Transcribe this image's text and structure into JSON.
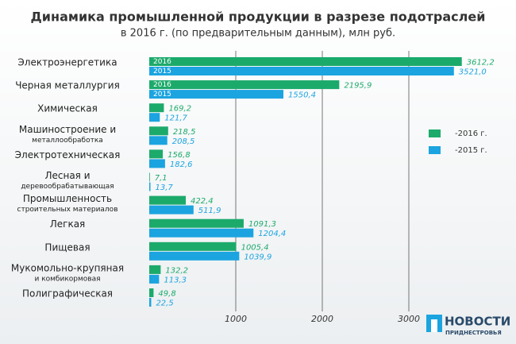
{
  "chart_data": {
    "type": "barh",
    "title": "Динамика промышленной продукции в разрезе подотраслей",
    "subtitle": "в 2016 г. (по предварительным данным), млн руб.",
    "categories": [
      [
        "Электроэнергетика"
      ],
      [
        "Черная металлургия"
      ],
      [
        "Химическая"
      ],
      [
        "Машиностроение и",
        "металлообработка"
      ],
      [
        "Электротехническая"
      ],
      [
        "Лесная и",
        "деревообрабатывающая"
      ],
      [
        "Промышленность",
        "строительных материалов"
      ],
      [
        "Легкая"
      ],
      [
        "Пищевая"
      ],
      [
        "Мукомольно-крупяная",
        "и комбикормовая"
      ],
      [
        "Полиграфическая"
      ]
    ],
    "series": [
      {
        "name": "2016",
        "legend_label": "-2016 г.",
        "color": "#1caa6b",
        "values": [
          3612.2,
          2195.9,
          169.2,
          218.5,
          156.8,
          7.1,
          422.4,
          1091.3,
          1005.4,
          132.2,
          49.8
        ],
        "value_labels": [
          "3612,2",
          "2195,9",
          "169,2",
          "218,5",
          "156,8",
          "7,1",
          "422,4",
          "1091,3",
          "1005,4",
          "132,2",
          "49,8"
        ]
      },
      {
        "name": "2015",
        "legend_label": "-2015 г.",
        "color": "#1ba4e0",
        "values": [
          3521.0,
          1550.4,
          121.7,
          208.5,
          182.6,
          13.7,
          511.9,
          1204.4,
          1039.9,
          113.3,
          22.5
        ],
        "value_labels": [
          "3521,0",
          "1550,4",
          "121,7",
          "208,5",
          "182,6",
          "13,7",
          "511,9",
          "1204,4",
          "1039,9",
          "113,3",
          "22,5"
        ]
      }
    ],
    "xlim": [
      0,
      4000
    ],
    "xticks": [
      1000,
      2000,
      3000
    ],
    "grid": true,
    "logo": {
      "line1": "НОВОСТИ",
      "line2": "ПРИДНЕСТРОВЬЯ"
    }
  }
}
